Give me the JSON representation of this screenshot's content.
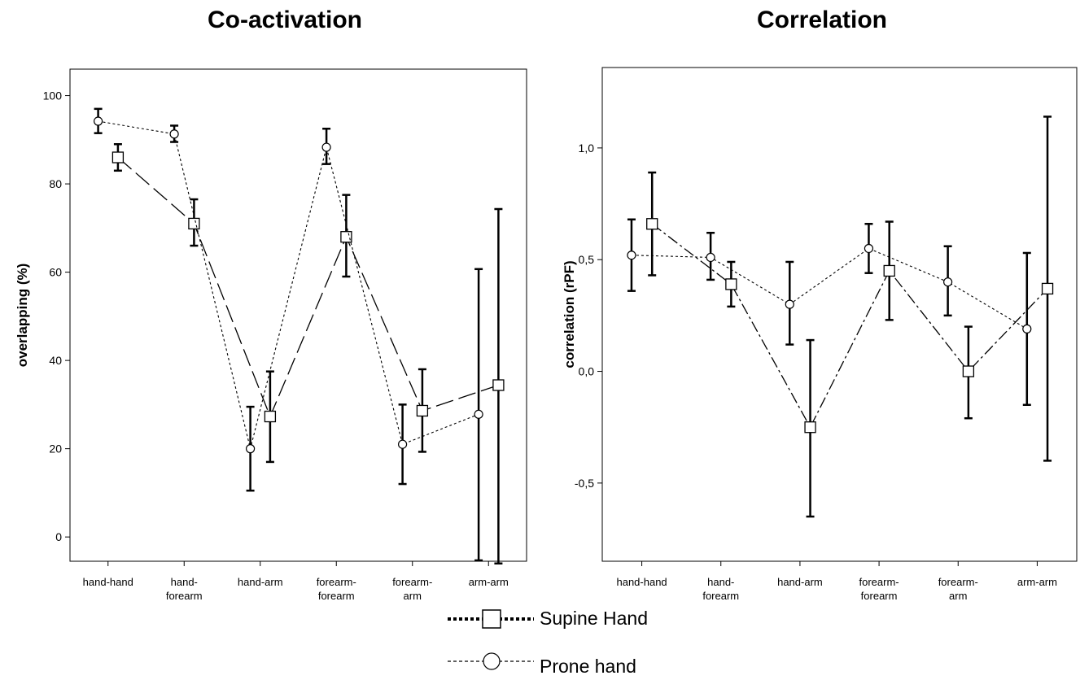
{
  "chart_data": [
    {
      "type": "line",
      "title": "Co-activation",
      "xlabel": "",
      "ylabel": "overlapping (%)",
      "categories": [
        "hand-hand",
        "hand-forearm",
        "hand-arm",
        "forearm-forearm",
        "forearm-arm",
        "arm-arm"
      ],
      "category_lines": [
        [
          "hand-hand"
        ],
        [
          "hand-",
          "forearm"
        ],
        [
          "hand-arm"
        ],
        [
          "forearm-",
          "forearm"
        ],
        [
          "forearm-",
          "arm"
        ],
        [
          "arm-arm"
        ]
      ],
      "yticks": [
        "0",
        "20",
        "40",
        "60",
        "80",
        "100"
      ],
      "ytick_values": [
        0,
        20,
        40,
        60,
        80,
        100
      ],
      "ylim": [
        -5.5,
        106
      ],
      "grid": false,
      "series": [
        {
          "name": "Supine Hand",
          "marker": "square",
          "values": [
            86,
            71,
            27.3,
            68,
            28.6,
            34.4
          ],
          "error_low": [
            83,
            66,
            17,
            59,
            19.3,
            -6
          ],
          "error_high": [
            89,
            76.5,
            37.5,
            77.5,
            38,
            74.3
          ]
        },
        {
          "name": "Prone hand",
          "marker": "circle",
          "values": [
            94.2,
            91.3,
            20,
            88.3,
            21,
            27.8
          ],
          "error_low": [
            91.5,
            89.5,
            10.5,
            84.5,
            12,
            -5.3
          ],
          "error_high": [
            97,
            93.2,
            29.5,
            92.5,
            30,
            60.7
          ]
        }
      ]
    },
    {
      "type": "line",
      "title": "Correlation",
      "xlabel": "",
      "ylabel": "correlation (rPF)",
      "categories": [
        "hand-hand",
        "hand-forearm",
        "hand-arm",
        "forearm-forearm",
        "forearm-arm",
        "arm-arm"
      ],
      "category_lines": [
        [
          "hand-hand"
        ],
        [
          "hand-",
          "forearm"
        ],
        [
          "hand-arm"
        ],
        [
          "forearm-",
          "forearm"
        ],
        [
          "forearm-",
          "arm"
        ],
        [
          "arm-arm"
        ]
      ],
      "yticks": [
        "-0,5",
        "0,0",
        "0,5",
        "1,0"
      ],
      "ytick_values": [
        -0.5,
        0,
        0.5,
        1.0
      ],
      "ylim": [
        -0.85,
        1.36
      ],
      "grid": false,
      "series": [
        {
          "name": "Supine Hand",
          "marker": "square",
          "values": [
            0.66,
            0.39,
            -0.25,
            0.45,
            0,
            0.37
          ],
          "error_low": [
            0.43,
            0.29,
            -0.65,
            0.23,
            -0.21,
            -0.4
          ],
          "error_high": [
            0.89,
            0.49,
            0.14,
            0.67,
            0.2,
            1.14
          ]
        },
        {
          "name": "Prone hand",
          "marker": "circle",
          "values": [
            0.52,
            0.51,
            0.3,
            0.55,
            0.4,
            0.19
          ],
          "error_low": [
            0.36,
            0.41,
            0.12,
            0.44,
            0.25,
            -0.15
          ],
          "error_high": [
            0.68,
            0.62,
            0.49,
            0.66,
            0.56,
            0.53
          ]
        }
      ]
    }
  ],
  "legend": {
    "items": [
      {
        "label": "Supine Hand",
        "marker": "square"
      },
      {
        "label": "Prone hand",
        "marker": "circle"
      }
    ]
  }
}
